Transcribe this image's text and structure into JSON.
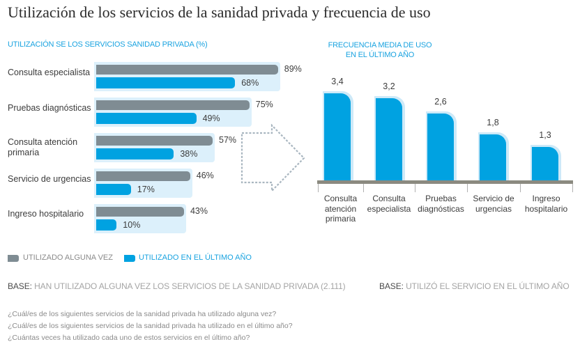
{
  "title": "Utilización de los servicios de la sanidad privada y frecuencia de uso",
  "colors": {
    "accent": "#1aa3e0",
    "gray_series": "#7f8c93",
    "blue_series": "#00a2e1",
    "halo": "#dcf0fb",
    "axis": "#8b8a80"
  },
  "chart_data": [
    {
      "type": "bar",
      "orientation": "horizontal",
      "title": "UTILIZACIÓN SE LOS SERVICIOS SANIDAD PRIVADA (%)",
      "categories": [
        "Consulta especialista",
        "Pruebas diagnósticas",
        "Consulta atención primaria",
        "Servicio de urgencias",
        "Ingreso hospitalario"
      ],
      "series": [
        {
          "name": "UTILIZADO ALGUNA VEZ",
          "color": "#7f8c93",
          "values": [
            89,
            75,
            57,
            46,
            43
          ],
          "labels": [
            "89%",
            "75%",
            "57%",
            "46%",
            "43%"
          ]
        },
        {
          "name": "UTILIZADO EN EL ÚLTIMO AÑO",
          "color": "#00a2e1",
          "values": [
            68,
            49,
            38,
            17,
            10
          ],
          "labels": [
            "68%",
            "49%",
            "38%",
            "17%",
            "10%"
          ]
        }
      ],
      "xlim": [
        0,
        100
      ],
      "legend": "bottom-left",
      "grid": false
    },
    {
      "type": "bar",
      "orientation": "vertical",
      "title": "FRECUENCIA MEDIA DE USO EN EL ÚLTIMO AÑO",
      "title_lines": [
        "FRECUENCIA MEDIA DE USO",
        "EN EL ÚLTIMO AÑO"
      ],
      "categories": [
        "Consulta atención primaria",
        "Consulta especialista",
        "Pruebas diagnósticas",
        "Servicio de urgencias",
        "Ingreso hospitalario"
      ],
      "category_lines": [
        [
          "Consulta",
          "atención",
          "primaria"
        ],
        [
          "Consulta",
          "especialista"
        ],
        [
          "Pruebas",
          "diagnósticas"
        ],
        [
          "Servicio de",
          "urgencias"
        ],
        [
          "Ingreso",
          "hospitalario"
        ]
      ],
      "values": [
        3.4,
        3.2,
        2.6,
        1.8,
        1.3
      ],
      "labels": [
        "3,4",
        "3,2",
        "2,6",
        "1,8",
        "1,3"
      ],
      "ylim": [
        0,
        3.4
      ],
      "grid": false
    }
  ],
  "legend": {
    "items": [
      {
        "label": "UTILIZADO ALGUNA VEZ",
        "color": "#7f8c93",
        "text_color": "#8a8a8a"
      },
      {
        "label": "UTILIZADO EN EL ÚLTIMO AÑO",
        "color": "#00a2e1",
        "text_color": "#1aa3e0"
      }
    ]
  },
  "base_left": {
    "prefix": "BASE:",
    "text": " HAN UTILIZADO ALGUNA VEZ LOS SERVICIOS DE LA SANIDAD PRIVADA (2.111)"
  },
  "base_right": {
    "prefix": "BASE:",
    "text": " UTILIZÓ EL SERVICIO EN EL ÚLTIMO AÑO"
  },
  "questions": [
    "¿Cuál/es de los siguientes servicios de la sanidad privada ha utilizado alguna vez?",
    "¿Cuál/es de los siguientes servicios de la sanidad privada ha utilizado en el último año?",
    "¿Cuántas veces ha utilizado cada uno de estos servicios en el último año?"
  ],
  "arrow_icon": "dotted-right-arrow-icon"
}
